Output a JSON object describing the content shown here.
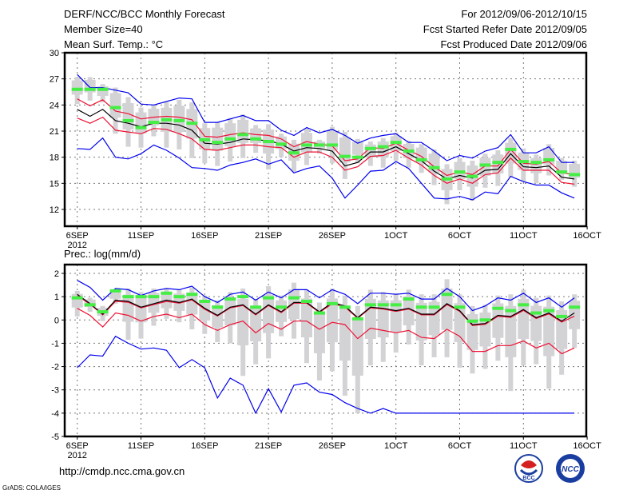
{
  "header": {
    "title": "DERF/NCC/BCC Monthly Forecast",
    "member": "Member Size=40",
    "variable": "Mean Surf. Temp.: °C",
    "period": "For 2012/09/06-2012/10/15",
    "started": "Fcst Started Refer Date 2012/09/05",
    "produced": "Fcst Produced Date 2012/09/06"
  },
  "footer": {
    "url": "http://cmdp.ncc.cma.gov.cn",
    "grads": "GrADS: COLA/IGES",
    "logo_bcc": "BCC",
    "logo_ncc": "NCC"
  },
  "colors": {
    "obs": "#44ee44",
    "mean": "#000000",
    "inner": "#ee1133",
    "outer": "#0000ee",
    "bar": "#d3d3d6",
    "grid": "#777777"
  },
  "chart_data": [
    {
      "type": "box-line",
      "title": "Mean Surf. Temp.: °C",
      "xtick_labels": [
        "6SEP",
        "11SEP",
        "16SEP",
        "21SEP",
        "26SEP",
        "1OCT",
        "6OCT",
        "11OCT",
        "16OCT"
      ],
      "xtick_sub": "2012",
      "ylim": [
        11,
        30
      ],
      "yticks": [
        12,
        15,
        18,
        21,
        24,
        27,
        30
      ],
      "grid": true,
      "series": [
        {
          "name": "max",
          "color": "outer",
          "values": [
            27.5,
            26.0,
            26.0,
            25.7,
            25.4,
            24.1,
            24.0,
            24.4,
            24.8,
            24.7,
            22.0,
            22.0,
            22.4,
            22.8,
            22.2,
            22.2,
            21.1,
            20.5,
            21.4,
            20.8,
            21.2,
            20.5,
            19.6,
            20.2,
            20.5,
            20.7,
            19.7,
            19.7,
            18.7,
            17.6,
            18.2,
            17.9,
            18.7,
            19.1,
            20.6,
            18.5,
            18.5,
            19.2,
            17.4,
            17.4
          ]
        },
        {
          "name": "upper",
          "color": "inner",
          "values": [
            24.7,
            23.9,
            24.6,
            23.3,
            23.0,
            22.4,
            22.6,
            22.7,
            22.6,
            22.3,
            20.4,
            20.3,
            20.6,
            20.8,
            20.6,
            20.5,
            20.1,
            19.2,
            19.8,
            19.5,
            19.3,
            17.6,
            17.8,
            19.1,
            19.0,
            19.6,
            18.8,
            18.1,
            16.9,
            15.9,
            16.3,
            16.0,
            17.0,
            17.0,
            18.9,
            17.3,
            17.2,
            17.5,
            16.2,
            16.0
          ]
        },
        {
          "name": "mean",
          "color": "mean",
          "values": [
            23.5,
            22.7,
            23.5,
            22.2,
            21.9,
            21.5,
            21.9,
            21.9,
            21.7,
            21.1,
            19.6,
            19.5,
            19.7,
            20.1,
            20.0,
            19.9,
            19.5,
            18.7,
            19.1,
            19.0,
            18.7,
            17.0,
            17.4,
            18.6,
            18.6,
            19.2,
            18.4,
            17.6,
            16.4,
            15.5,
            15.9,
            15.6,
            16.5,
            16.6,
            18.4,
            16.9,
            16.8,
            17.0,
            15.7,
            15.5
          ]
        },
        {
          "name": "lower",
          "color": "inner",
          "values": [
            22.5,
            21.9,
            22.6,
            21.1,
            20.9,
            20.7,
            21.3,
            21.2,
            20.7,
            20.1,
            18.9,
            18.8,
            19.1,
            19.4,
            19.4,
            19.2,
            19.1,
            18.0,
            18.6,
            18.6,
            18.0,
            16.5,
            16.9,
            18.1,
            18.2,
            18.8,
            17.9,
            17.1,
            15.9,
            15.0,
            15.5,
            15.0,
            16.0,
            16.2,
            17.9,
            16.5,
            16.5,
            16.5,
            15.1,
            14.9
          ]
        },
        {
          "name": "min",
          "color": "outer",
          "values": [
            19.0,
            18.9,
            20.2,
            18.0,
            17.8,
            18.4,
            19.4,
            18.8,
            17.9,
            16.8,
            16.7,
            16.5,
            17.1,
            17.4,
            17.8,
            17.2,
            17.7,
            16.2,
            16.7,
            17.0,
            15.6,
            13.3,
            14.8,
            16.4,
            16.5,
            17.5,
            16.7,
            15.0,
            13.3,
            13.2,
            13.5,
            13.1,
            14.0,
            13.8,
            15.8,
            15.2,
            14.8,
            14.8,
            13.9,
            13.3
          ]
        }
      ],
      "obs": [
        25.8,
        25.8,
        25.8,
        23.7,
        22.2,
        21.4,
        22.0,
        22.3,
        22.2,
        21.9,
        20.0,
        19.7,
        20.1,
        20.6,
        20.1,
        19.8,
        19.5,
        18.5,
        19.4,
        19.4,
        19.4,
        18.1,
        18.0,
        19.0,
        19.2,
        19.7,
        18.7,
        17.7,
        16.8,
        15.5,
        16.3,
        15.8,
        17.1,
        17.4,
        18.9,
        17.5,
        17.4,
        17.7,
        16.3,
        16.0
      ],
      "bar_low": [
        24.1,
        24.5,
        24.3,
        20.7,
        19.2,
        19.1,
        20.4,
        19.1,
        18.9,
        17.9,
        17.3,
        17.0,
        17.5,
        17.9,
        18.5,
        16.6,
        18.0,
        16.3,
        17.1,
        18.4,
        17.3,
        15.5,
        17.3,
        17.0,
        16.8,
        17.6,
        16.8,
        16.2,
        14.8,
        12.6,
        14.2,
        13.0,
        14.5,
        14.7,
        15.7,
        15.2,
        15.0,
        15.9,
        15.4,
        14.6
      ],
      "bar_high": [
        27.2,
        27.2,
        26.4,
        26.0,
        24.9,
        23.7,
        24.0,
        24.3,
        24.6,
        24.3,
        21.9,
        22.0,
        22.5,
        22.9,
        21.7,
        21.8,
        20.7,
        20.0,
        21.3,
        20.0,
        21.5,
        20.9,
        20.1,
        19.8,
        20.2,
        20.8,
        19.9,
        19.5,
        18.9,
        17.2,
        17.9,
        17.6,
        18.4,
        18.8,
        20.2,
        19.0,
        18.3,
        19.5,
        17.9,
        17.6
      ]
    },
    {
      "type": "box-line",
      "title": "Prec.: log(mm/d)",
      "xtick_labels": [
        "6SEP",
        "11SEP",
        "16SEP",
        "21SEP",
        "26SEP",
        "1OCT",
        "6OCT",
        "11OCT",
        "16OCT"
      ],
      "xtick_sub": "2012",
      "ylim": [
        -5,
        2.4
      ],
      "yticks": [
        -5,
        -4,
        -3,
        -2,
        -1,
        0,
        1,
        2
      ],
      "grid": true,
      "series": [
        {
          "name": "max",
          "color": "outer",
          "values": [
            1.7,
            1.4,
            0.85,
            1.35,
            1.3,
            1.05,
            1.25,
            1.35,
            1.3,
            1.45,
            1.0,
            0.75,
            1.1,
            1.2,
            0.85,
            1.2,
            0.95,
            1.3,
            1.3,
            0.95,
            1.3,
            1.1,
            0.7,
            1.15,
            1.15,
            1.1,
            1.15,
            0.9,
            0.9,
            1.35,
            1.0,
            0.4,
            0.6,
            0.95,
            0.85,
            1.15,
            0.75,
            0.95,
            0.55,
            0.95
          ]
        },
        {
          "name": "upper",
          "color": "inner",
          "values": [
            1.05,
            0.68,
            0.22,
            0.8,
            0.76,
            0.52,
            0.66,
            0.8,
            0.72,
            0.86,
            0.46,
            0.17,
            0.52,
            0.62,
            0.22,
            0.62,
            0.32,
            0.72,
            0.72,
            0.32,
            0.7,
            0.56,
            0.07,
            0.52,
            0.47,
            0.37,
            0.47,
            0.22,
            0.22,
            0.66,
            0.37,
            -0.24,
            -0.19,
            0.16,
            0.11,
            0.41,
            0.06,
            0.26,
            -0.09,
            0.16
          ]
        },
        {
          "name": "mean",
          "color": "mean",
          "values": [
            1.1,
            0.7,
            0.25,
            0.85,
            0.8,
            0.55,
            0.7,
            0.85,
            0.75,
            0.9,
            0.5,
            0.2,
            0.55,
            0.65,
            0.25,
            0.65,
            0.35,
            0.75,
            0.75,
            0.35,
            0.75,
            0.6,
            0.1,
            0.55,
            0.5,
            0.4,
            0.5,
            0.25,
            0.25,
            0.7,
            0.4,
            -0.2,
            -0.15,
            0.2,
            0.15,
            0.45,
            0.1,
            0.3,
            -0.05,
            0.3
          ]
        },
        {
          "name": "lower",
          "color": "inner",
          "values": [
            0.5,
            0.2,
            -0.3,
            0.3,
            0.2,
            -0.05,
            0.15,
            0.25,
            0.1,
            0.25,
            -0.2,
            -0.45,
            -0.2,
            -0.05,
            -0.55,
            -0.15,
            -0.4,
            -0.05,
            -0.05,
            -0.4,
            -0.1,
            -0.2,
            -0.8,
            -0.35,
            -0.45,
            -0.55,
            -0.45,
            -0.75,
            -0.8,
            -0.4,
            -0.7,
            -1.35,
            -1.35,
            -1.1,
            -1.1,
            -0.9,
            -1.2,
            -1.0,
            -1.45,
            -1.2
          ]
        },
        {
          "name": "min",
          "color": "outer",
          "values": [
            -2.05,
            -1.5,
            -1.55,
            -0.7,
            -1.0,
            -1.25,
            -1.2,
            -1.3,
            -2.05,
            -1.7,
            -2.05,
            -3.35,
            -2.5,
            -2.8,
            -4.0,
            -2.95,
            -3.95,
            -2.8,
            -2.7,
            -3.1,
            -3.2,
            -3.55,
            -3.8,
            -4.0,
            -3.8,
            -4.0,
            -4.0,
            -4.0,
            -4.0,
            -4.0,
            -4.0,
            -4.0,
            -4.0,
            -4.0,
            -4.0,
            -4.0,
            -4.0,
            -4.0,
            -4.0,
            -4.0
          ]
        }
      ],
      "obs": [
        0.95,
        0.65,
        0.35,
        1.25,
        1.0,
        1.0,
        1.0,
        1.15,
        1.0,
        1.1,
        0.8,
        0.55,
        0.9,
        1.0,
        0.55,
        0.95,
        0.55,
        0.95,
        0.8,
        0.3,
        0.7,
        0.55,
        0.05,
        0.65,
        0.65,
        0.65,
        0.9,
        0.55,
        0.55,
        1.1,
        0.55,
        -0.05,
        0.0,
        0.5,
        0.4,
        0.65,
        0.3,
        0.4,
        0.15,
        0.55
      ],
      "bar_low": [
        0.15,
        0.35,
        -0.05,
        0.7,
        -0.85,
        -0.8,
        -0.25,
        0.05,
        -0.1,
        -0.4,
        -0.6,
        -0.95,
        -1.0,
        -2.4,
        -1.9,
        -1.65,
        -0.7,
        -0.8,
        -1.85,
        -2.6,
        -2.2,
        -3.25,
        -4.0,
        -1.95,
        -1.8,
        -1.4,
        -1.05,
        -1.95,
        -1.6,
        -1.6,
        -2.05,
        -2.3,
        -2.1,
        -1.75,
        -3.05,
        -1.95,
        -1.9,
        -2.95,
        -2.35,
        -1.2
      ],
      "bar_high": [
        1.25,
        0.95,
        0.6,
        1.3,
        1.35,
        1.2,
        1.35,
        1.35,
        1.3,
        1.4,
        1.05,
        0.85,
        1.2,
        1.35,
        0.9,
        1.45,
        1.05,
        1.6,
        1.3,
        0.75,
        1.35,
        1.05,
        0.6,
        1.3,
        1.2,
        1.15,
        1.3,
        1.1,
        1.1,
        1.75,
        1.1,
        0.6,
        0.65,
        1.05,
        1.1,
        1.3,
        0.95,
        1.05,
        0.8,
        1.1
      ]
    }
  ]
}
